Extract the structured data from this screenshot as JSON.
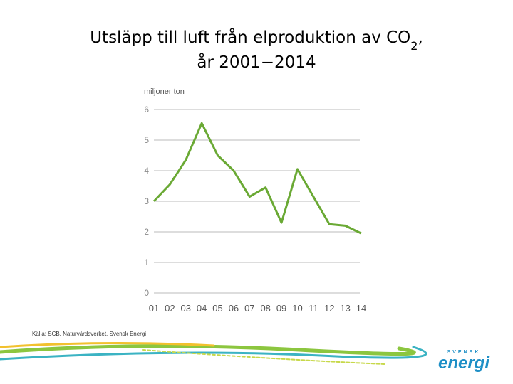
{
  "chart_data": {
    "type": "line",
    "title": {
      "main": "Utsläpp till luft från elproduktion av CO",
      "subscript": "2",
      "tail": ",",
      "line2": "år 2001−2014"
    },
    "y_label": "miljoner ton",
    "categories": [
      "01",
      "02",
      "03",
      "04",
      "05",
      "06",
      "07",
      "08",
      "09",
      "10",
      "11",
      "12",
      "13",
      "14"
    ],
    "values": [
      3.0,
      3.55,
      4.35,
      5.55,
      4.5,
      4.0,
      3.15,
      3.45,
      2.3,
      4.05,
      3.15,
      2.25,
      2.2,
      1.95
    ],
    "color": "#6aa934",
    "ylim": [
      0,
      6
    ],
    "yticks": [
      0,
      1,
      2,
      3,
      4,
      5,
      6
    ],
    "grid": true,
    "source": "Källa: SCB, Naturvårdsverket, Svensk Energi",
    "logo": {
      "small": "SVENSK",
      "big": "energi"
    }
  }
}
